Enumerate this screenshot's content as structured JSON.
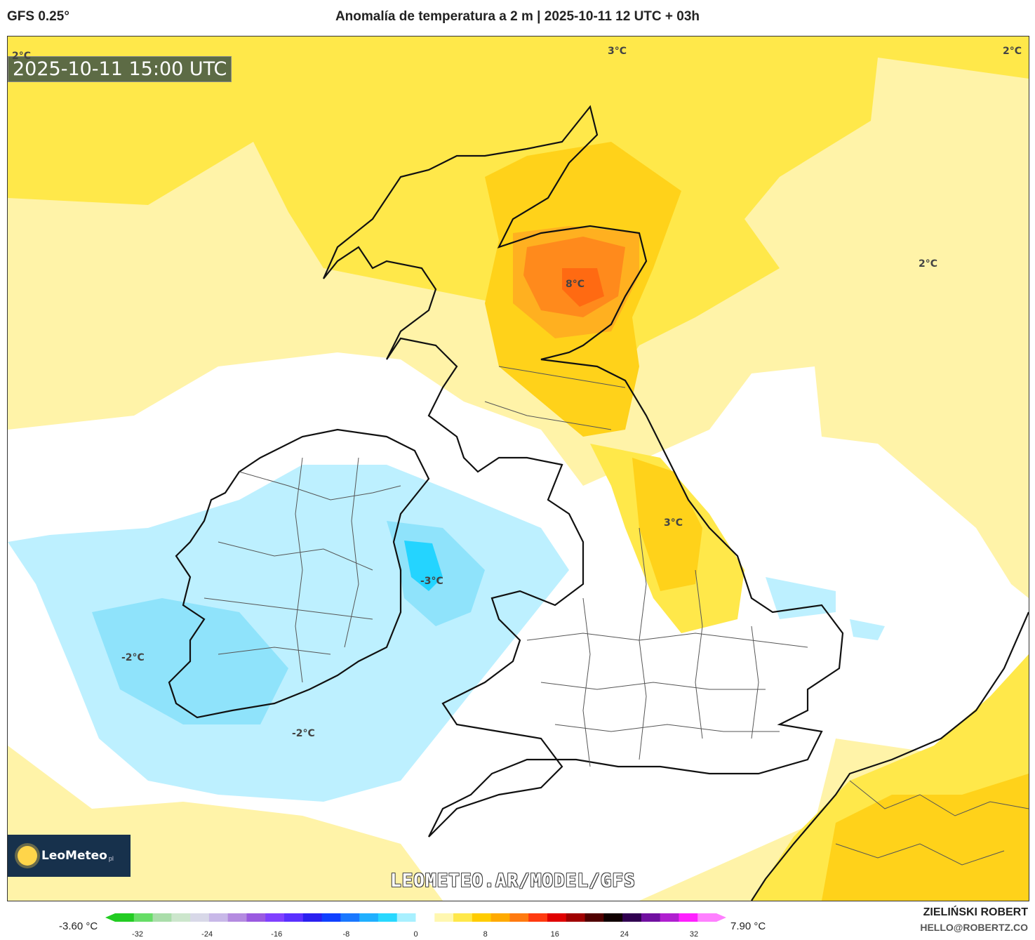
{
  "header": {
    "model": "GFS 0.25°",
    "title": "Anomalía de temperatura a 2 m | 2025-10-11 12 UTC + 03h"
  },
  "map": {
    "timestamp": "2025-10-11 15:00 UTC",
    "watermark": "LEOMETEO.AR/MODEL/GFS",
    "logo_text": "LeoMeteo",
    "logo_sub": "pl",
    "contour_labels": [
      "2°C",
      "3°C",
      "2°C",
      "2°C",
      "8°C",
      "3°C",
      "-3°C",
      "-2°C",
      "-2°C"
    ],
    "colors": {
      "warm_yellow": "#ffe84a",
      "pale_yellow": "#fff3a8",
      "orange": "#ffd21a",
      "deep_orange": "#ff8a1c",
      "red_orange": "#ff6a12",
      "light_blue": "#bdf0ff",
      "mid_blue": "#8fe3fb",
      "cyan": "#24d4ff",
      "land_line": "#111111",
      "border_line": "#555555"
    }
  },
  "legend": {
    "min_label": "-3.60 °C",
    "max_label": "7.90 °C",
    "ticks": [
      "-32",
      "-24",
      "-16",
      "-8",
      "0",
      "8",
      "16",
      "24",
      "32"
    ],
    "colors": [
      "#22cc22",
      "#66dd66",
      "#aaddaa",
      "#cce6cc",
      "#d8d8e8",
      "#c8b8e8",
      "#b48be0",
      "#9a5ae0",
      "#8040ff",
      "#5a30ff",
      "#2a20f0",
      "#1040ff",
      "#1a78ff",
      "#20b0ff",
      "#28d8ff",
      "#a8f0ff",
      "#ffffff",
      "#fff7b0",
      "#ffe84a",
      "#ffcc00",
      "#ffaa00",
      "#ff7a10",
      "#ff3a10",
      "#e00000",
      "#a00000",
      "#500000",
      "#100000",
      "#300050",
      "#7010a0",
      "#b020d0",
      "#ff20ff",
      "#ff80ff"
    ]
  },
  "credits": {
    "name": "ZIELIŃSKI ROBERT",
    "email": "HELLO@ROBERTZ.CO"
  }
}
